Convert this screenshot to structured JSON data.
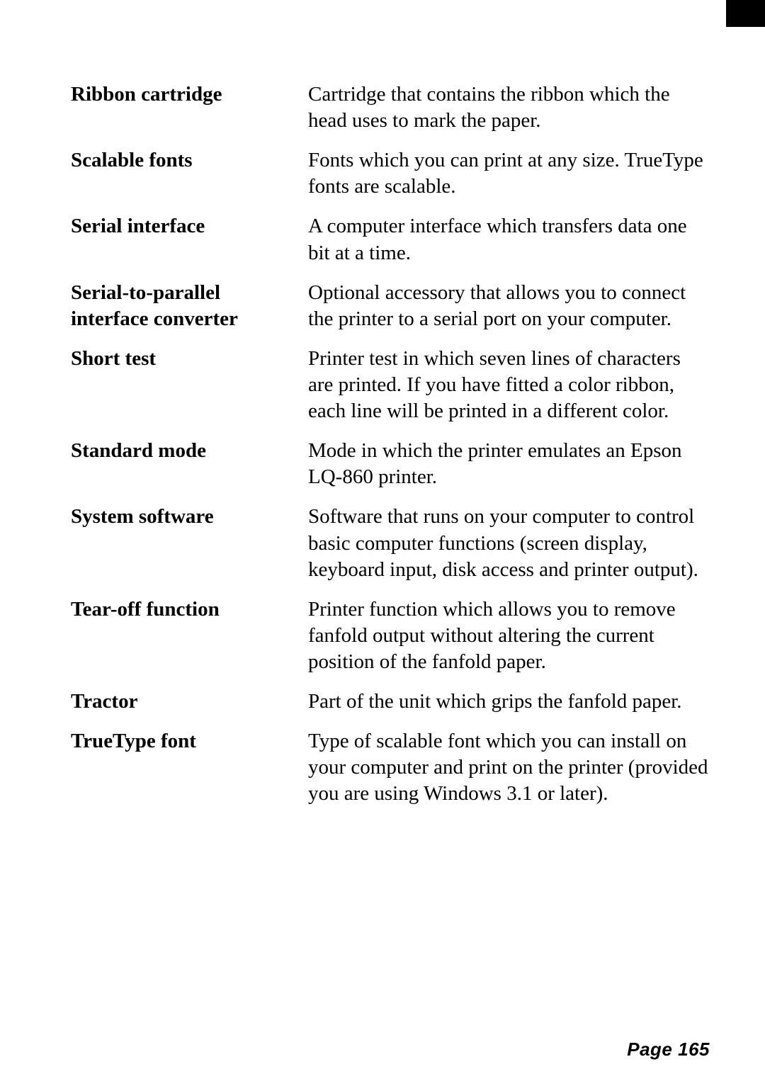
{
  "entries": [
    {
      "term": "Ribbon cartridge",
      "definition": "Cartridge that contains the ribbon which the head uses to mark the paper."
    },
    {
      "term": "Scalable fonts",
      "definition": "Fonts which you can print at any size. TrueType fonts are scalable."
    },
    {
      "term": "Serial interface",
      "definition": "A computer interface which transfers data one bit at a time."
    },
    {
      "term": "Serial-to-parallel interface converter",
      "definition": "Optional accessory that allows you to connect the printer to a serial port on your computer."
    },
    {
      "term": "Short test",
      "definition": "Printer test in which seven lines of characters are printed. If you have fitted a color ribbon, each line will be printed in a different color."
    },
    {
      "term": "Standard mode",
      "definition": "Mode in which the printer emulates an Epson LQ-860 printer."
    },
    {
      "term": "System software",
      "definition": "Software that runs on your computer to control basic computer functions (screen display, keyboard input, disk access and printer output)."
    },
    {
      "term": "Tear-off function",
      "definition": "Printer function which allows you to remove fanfold output without altering the current position of the fanfold paper."
    },
    {
      "term": "Tractor",
      "definition": "Part of the unit which grips the fanfold paper."
    },
    {
      "term": "TrueType font",
      "definition": "Type of scalable font which you can install on your computer and print on the printer (provided you are using Windows 3.1 or later)."
    }
  ],
  "page_label": "Page 165"
}
